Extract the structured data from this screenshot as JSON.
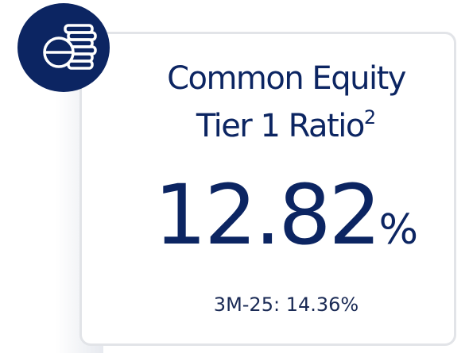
{
  "card": {
    "title_line1": "Common Equity",
    "title_line2": "Tier 1 Ratio",
    "footnote": "2",
    "value": "12.82",
    "unit": "%",
    "comparison": "3M-25: 14.36%"
  }
}
